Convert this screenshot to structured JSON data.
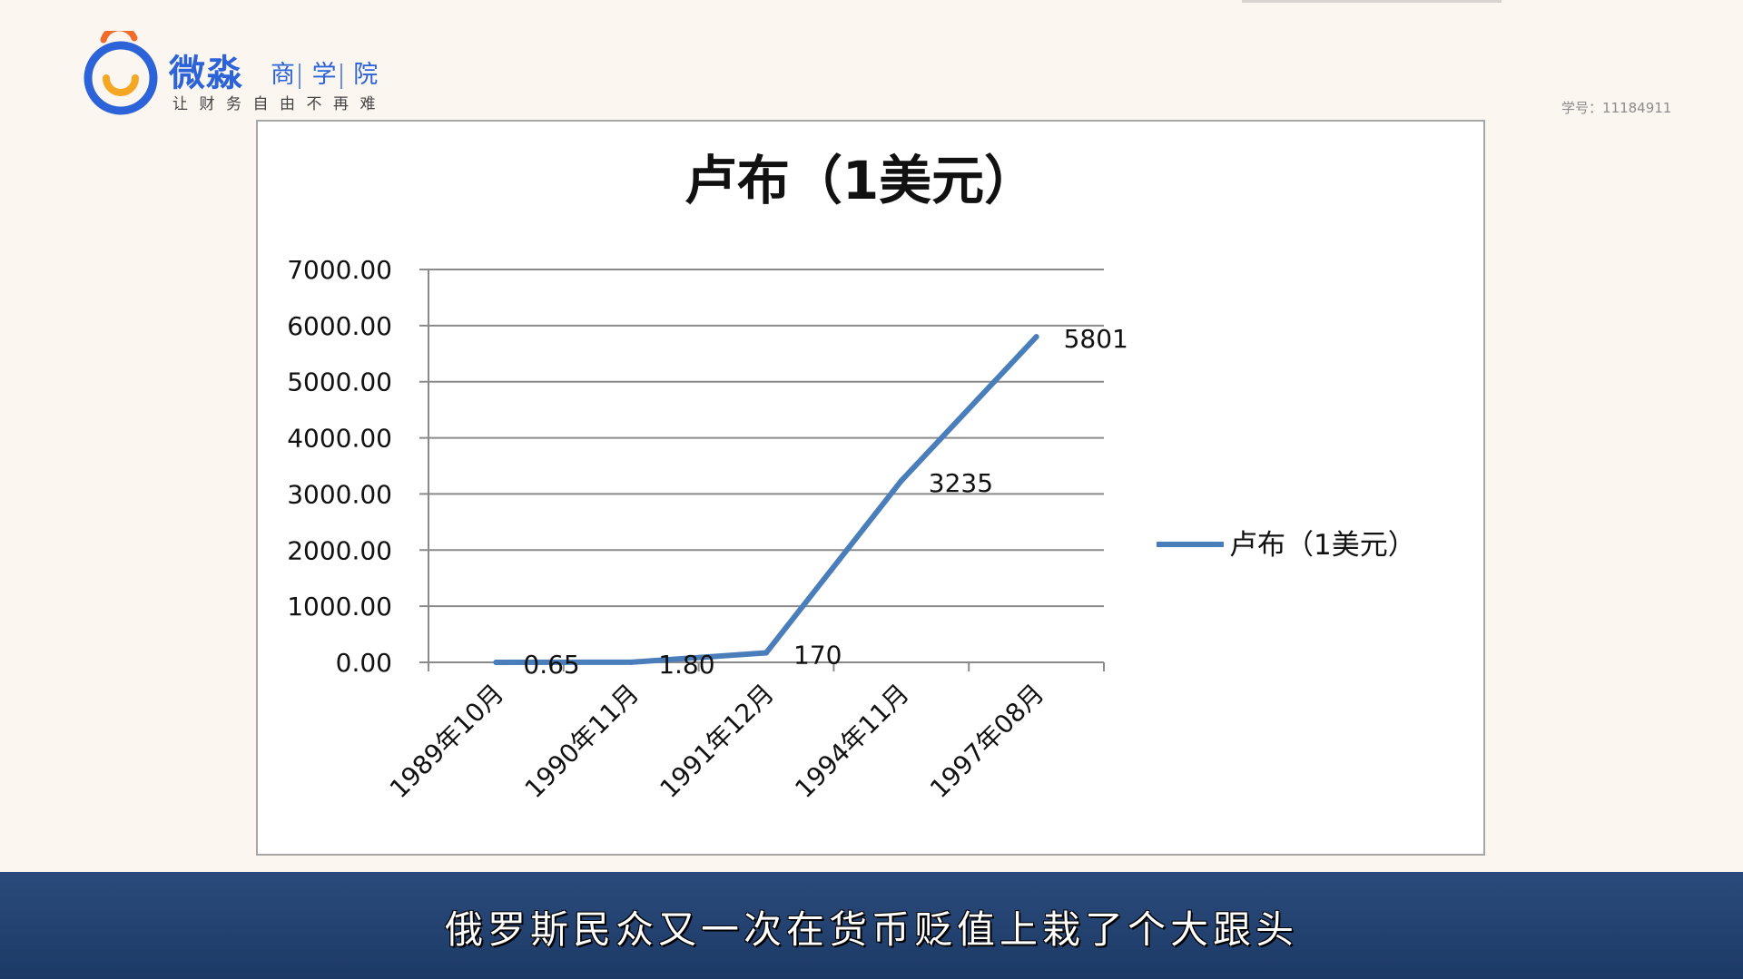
{
  "header": {
    "logo_name": "微淼",
    "logo_sub": [
      "商",
      "学",
      "院"
    ],
    "logo_slogan": "让财务自由不再难",
    "student_id": "学号：11184911",
    "brand_color": "#2d63d8",
    "accent_color": "#f26b2a"
  },
  "subtitle": {
    "text": "俄罗斯民众又一次在货币贬值上栽了个大跟头"
  },
  "chart_data": {
    "type": "line",
    "title": "卢布（1美元）",
    "xlabel": "",
    "ylabel": "",
    "categories": [
      "1989年10月",
      "1990年11月",
      "1991年12月",
      "1994年11月",
      "1997年08月"
    ],
    "series": [
      {
        "name": "卢布（1美元）",
        "values": [
          0.65,
          1.8,
          170,
          3235,
          5801
        ],
        "data_labels": [
          "0.65",
          "1.80",
          "170",
          "3235",
          "5801"
        ],
        "color": "#4a7ebb"
      }
    ],
    "ylim": [
      0,
      7000
    ],
    "yticks": [
      0,
      1000,
      2000,
      3000,
      4000,
      5000,
      6000,
      7000
    ],
    "ytick_labels": [
      "0.00",
      "1000.00",
      "2000.00",
      "3000.00",
      "4000.00",
      "5000.00",
      "6000.00",
      "7000.00"
    ],
    "grid": true,
    "legend_position": "right"
  }
}
